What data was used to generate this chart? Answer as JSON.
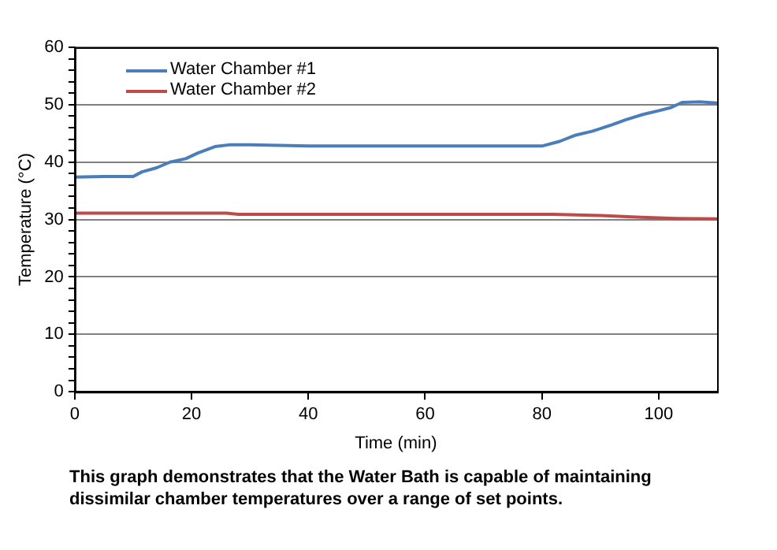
{
  "chart_data": {
    "type": "line",
    "xlabel": "Time (min)",
    "ylabel": "Temperature (°C)",
    "xlim": [
      0,
      110
    ],
    "xticks": [
      0,
      20,
      40,
      60,
      80,
      100
    ],
    "ylim": [
      0,
      60
    ],
    "yticks": [
      0,
      {
        "value": 2,
        "label": null
      },
      {
        "value": 4,
        "label": null
      },
      {
        "value": 6,
        "label": null
      },
      {
        "value": 8,
        "label": null
      },
      10,
      {
        "value": 12,
        "label": null
      },
      {
        "value": 14,
        "label": null
      },
      {
        "value": 16,
        "label": null
      },
      {
        "value": 18,
        "label": null
      },
      20,
      {
        "value": 22,
        "label": null
      },
      {
        "value": 24,
        "label": null
      },
      {
        "value": 26,
        "label": null
      },
      {
        "value": 28,
        "label": null
      },
      30,
      {
        "value": 32,
        "label": null
      },
      {
        "value": 34,
        "label": null
      },
      {
        "value": 36,
        "label": null
      },
      {
        "value": 38,
        "label": null
      },
      40,
      {
        "value": 42,
        "label": null
      },
      {
        "value": 44,
        "label": null
      },
      {
        "value": 46,
        "label": null
      },
      {
        "value": 48,
        "label": null
      },
      50,
      {
        "value": 52,
        "label": null
      },
      {
        "value": 54,
        "label": null
      },
      {
        "value": 56,
        "label": null
      },
      {
        "value": 58,
        "label": null
      },
      60
    ],
    "grid": "y",
    "legend": "top left",
    "marker": "none",
    "line_style": "solid",
    "series": [
      {
        "name": "Water Chamber #1",
        "color": "#4a7ebb",
        "x": [
          0,
          5,
          10,
          11.5,
          14,
          16.3,
          19,
          21.1,
          24,
          26.4,
          30,
          40,
          50,
          60,
          70,
          80,
          83,
          85.8,
          88.7,
          92,
          94.4,
          97.3,
          100.2,
          102.1,
          104,
          107,
          110
        ],
        "values": [
          37.4,
          37.5,
          37.5,
          38.3,
          39,
          40,
          40.6,
          41.6,
          42.7,
          43,
          43,
          42.8,
          42.8,
          42.8,
          42.8,
          42.8,
          43.6,
          44.7,
          45.4,
          46.5,
          47.4,
          48.3,
          49,
          49.5,
          50.4,
          50.5,
          50.3
        ]
      },
      {
        "name": "Water Chamber #2",
        "color": "#be4b48",
        "x": [
          0,
          26,
          28,
          60,
          82,
          90,
          97,
          103,
          110
        ],
        "values": [
          31.1,
          31.1,
          30.9,
          30.9,
          30.9,
          30.7,
          30.4,
          30.2,
          30.1
        ]
      }
    ],
    "annotations": [
      "This graph demonstrates that the Water Bath is capable of maintaining dissimilar chamber temperatures over a range of set points."
    ]
  }
}
